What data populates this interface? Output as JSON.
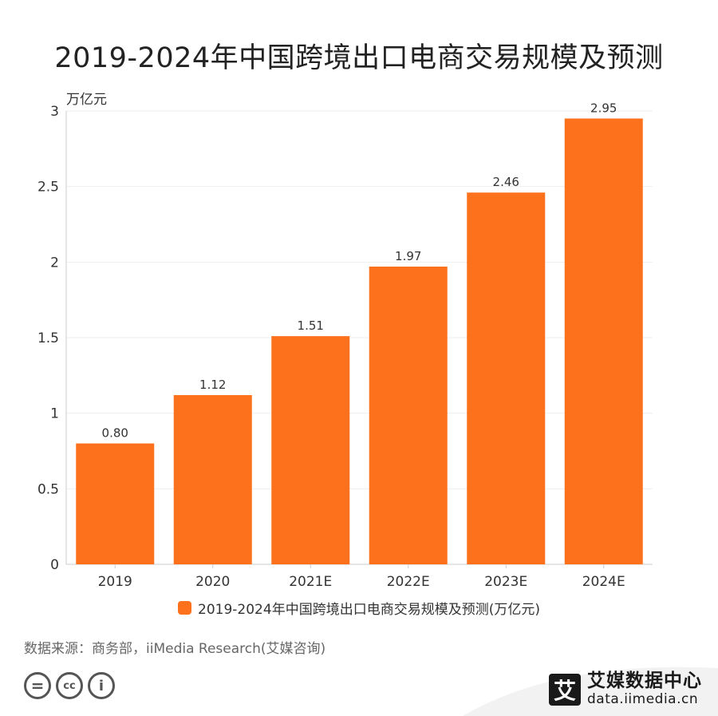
{
  "header": {
    "title": "2019-2024年中国跨境出口电商交易规模及预测"
  },
  "colors": {
    "bar": "#fd711c",
    "grid": "#eeeeee",
    "axis": "#cccccc"
  },
  "chart_data": {
    "type": "bar",
    "title": "2019-2024年中国跨境出口电商交易规模及预测",
    "ylabel": "万亿元",
    "xlabel": "",
    "categories": [
      "2019",
      "2020",
      "2021E",
      "2022E",
      "2023E",
      "2024E"
    ],
    "values": [
      0.8,
      1.12,
      1.51,
      1.97,
      2.46,
      2.95
    ],
    "value_labels": [
      "0.80",
      "1.12",
      "1.51",
      "1.97",
      "2.46",
      "2.95"
    ],
    "yticks": [
      0,
      0.5,
      1,
      1.5,
      2,
      2.5,
      3
    ],
    "ytick_labels": [
      "0",
      "0.5",
      "1",
      "1.5",
      "2",
      "2.5",
      "3"
    ],
    "ylim": [
      0,
      3
    ],
    "grid": true,
    "legend": {
      "position": "bottom",
      "label": "2019-2024年中国跨境出口电商交易规模及预测(万亿元)"
    }
  },
  "footer": {
    "source": "数据来源：商务部，iiMedia Research(艾媒咨询)",
    "license_icons": [
      "=",
      "cc",
      "i"
    ],
    "brand_logo_char": "艾",
    "brand_name": "艾媒数据中心",
    "brand_url": "data.iimedia.cn"
  }
}
